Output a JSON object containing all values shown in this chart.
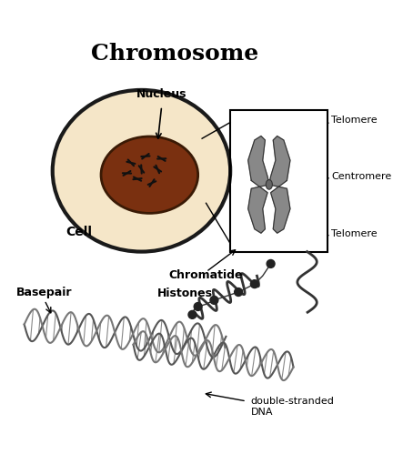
{
  "title": "Chromosome",
  "title_fontsize": 18,
  "title_fontweight": "bold",
  "background_color": "#ffffff",
  "labels": {
    "nucleus": "Nucleus",
    "cell": "Cell",
    "chromatide": "Chromatide",
    "telomere_top": "Telomere",
    "centromere": "Centromere",
    "telomere_bottom": "Telomere",
    "basepair": "Basepair",
    "histones": "Histones",
    "dna": "double-stranded\nDNA"
  },
  "cell_color": "#f5e6c8",
  "cell_edge_color": "#1a1a1a",
  "nucleus_color": "#8b4513",
  "nucleus_fill": "#8b3a1f",
  "chromosome_color": "#888888",
  "dna_color": "#555555"
}
